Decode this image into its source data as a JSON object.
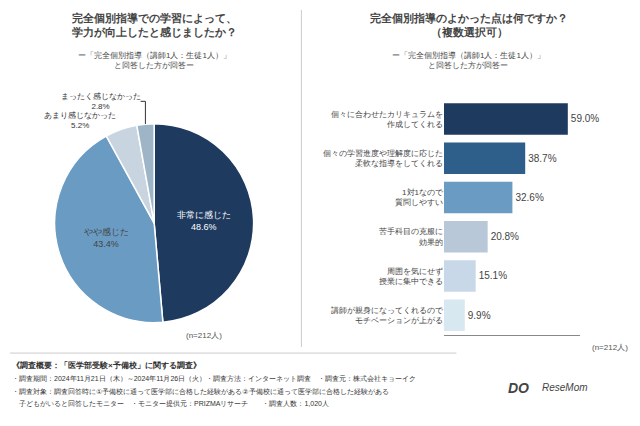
{
  "chart_data": [
    {
      "type": "pie",
      "title": "完全個別指導での学習によって、\n学力が向上したと感じましたか？",
      "subtitle": "ー「完全個別指導（講師1人：生徒1人）」\nと回答した方が回答ー",
      "categories": [
        "非常に感じた",
        "やや感じた",
        "あまり感じなかった",
        "まったく感じなかった"
      ],
      "values": [
        48.6,
        43.4,
        5.2,
        2.8
      ],
      "value_labels": [
        "48.6%",
        "43.4%",
        "5.2%",
        "2.8%"
      ],
      "colors": [
        "#1e3a5f",
        "#6a9bc3",
        "#c8d4df",
        "#9eb5c8"
      ],
      "data_labels": true,
      "annotations": [
        "(n=212人)"
      ]
    },
    {
      "type": "bar",
      "orientation": "horizontal",
      "title": "完全個別指導のよかった点は何ですか？\n（複数選択可）",
      "subtitle": "ー「完全個別指導（講師1人：生徒1人）」\nと回答した方が回答ー",
      "categories": [
        "個々に合わせたカリキュラムを\n作成してくれる",
        "個々の学習進度や理解度に応じた\n柔軟な指導をしてくれる",
        "1対1なので\n質問しやすい",
        "苦手科目の克服に\n効果的",
        "周囲を気にせず\n授業に集中できる",
        "講師が親身になってくれるので\nモチベーションが上がる"
      ],
      "values": [
        59.0,
        38.7,
        32.6,
        20.8,
        15.1,
        9.9
      ],
      "value_labels": [
        "59.0%",
        "38.7%",
        "32.6%",
        "20.8%",
        "15.1%",
        "9.9%"
      ],
      "colors": [
        "#1e3a5f",
        "#2e5f8a",
        "#6a9bc3",
        "#b8c8d8",
        "#c8d8e8",
        "#d8e8f0"
      ],
      "data_labels": true,
      "xlim": [
        0,
        65
      ],
      "xticks": [],
      "tick_labels": "y",
      "grid": false,
      "annotations": [
        "(n=212人)"
      ]
    }
  ],
  "annotations": [
    "《調査概要：「医学部受験×予備校」に関する調査》",
    "・調査期間：2024年11月21日（木）～2024年11月26日（火）・調査方法：インターネット調査　・調査元：株式会社キョーイク",
    "・調査対象：調査回答時に①予備校に通って医学部に合格した経験がある②予備校に通って医学部に合格した経験がある",
    "　子どもがいると回答したモニター　・モニター提供元：PRIZMAリサーチ　　・調査人数：1,020人",
    "DO",
    "ReseMom"
  ]
}
